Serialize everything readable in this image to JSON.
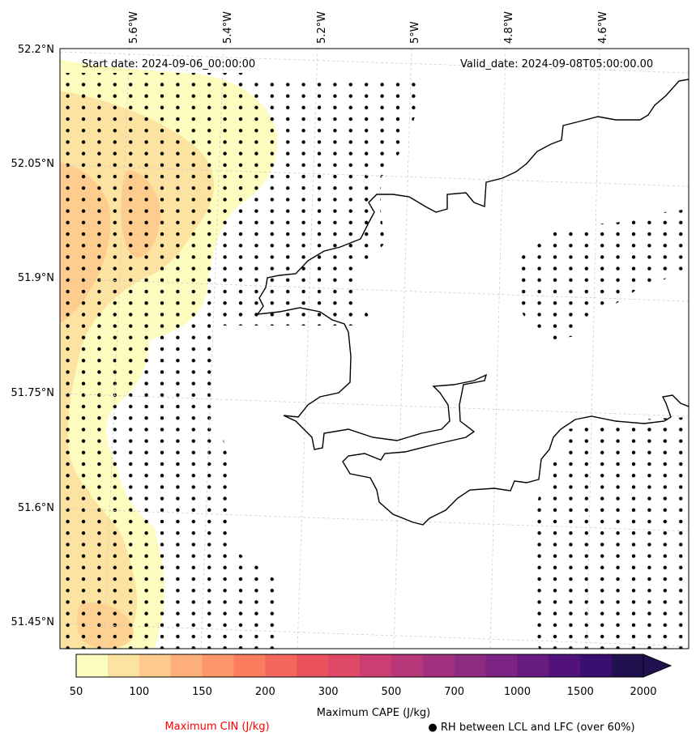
{
  "map": {
    "start_date": "Start date: 2024-09-06_00:00:00",
    "valid_date": "Valid_date: 2024-09-08T05:00:00.00",
    "lon_labels": [
      "5.6°W",
      "5.4°W",
      "5.2°W",
      "5°W",
      "4.8°W",
      "4.6°W"
    ],
    "lat_labels": [
      "52.2°N",
      "52.05°N",
      "51.9°N",
      "51.75°N",
      "51.6°N",
      "51.45°N"
    ]
  },
  "colorbar": {
    "tick_labels": [
      "50",
      "100",
      "150",
      "200",
      "300",
      "500",
      "700",
      "1000",
      "1500",
      "2000"
    ],
    "bin_colors": [
      "#fdfdbf",
      "#fde3a1",
      "#fec98a",
      "#feae78",
      "#fd9668",
      "#fa7d5e",
      "#f4675c",
      "#e9525d",
      "#de4968",
      "#ca3e72",
      "#b73779",
      "#a3307e",
      "#8f2a81",
      "#7b2382",
      "#671b80",
      "#51127c",
      "#3b0f70",
      "#221150"
    ],
    "label": "Maximum CAPE (J/kg)"
  },
  "legend": {
    "cin_label": "Maximum CIN (J/kg)",
    "cin_color": "#ff0000",
    "rh_label": "● RH between LCL and LFC (over 60%)"
  }
}
